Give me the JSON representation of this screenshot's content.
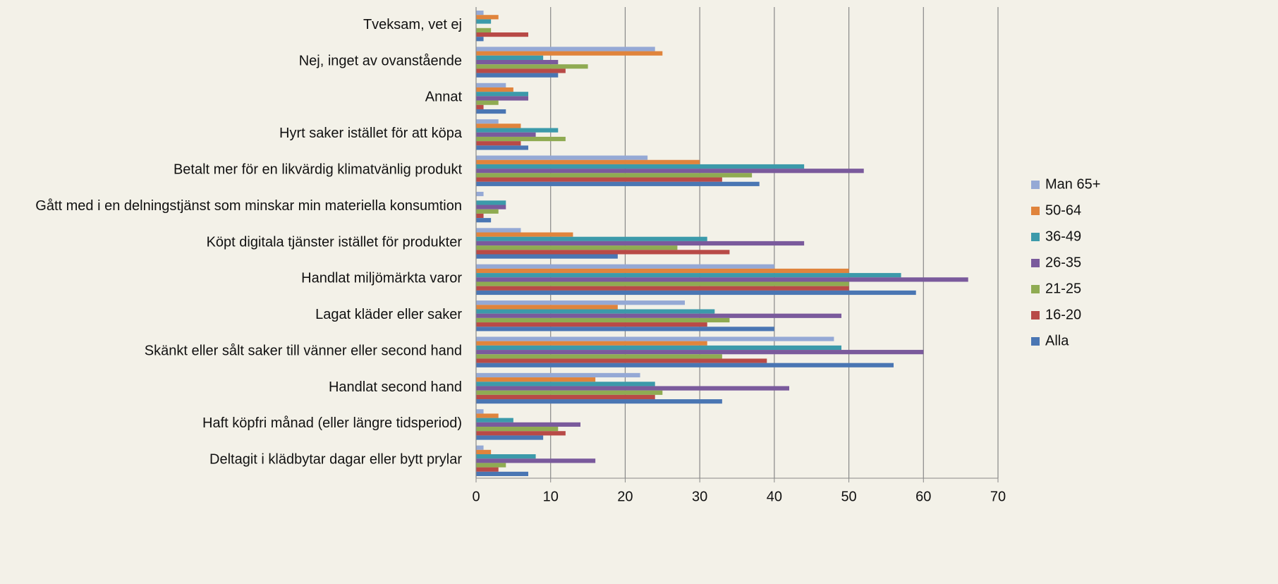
{
  "chart_data": {
    "type": "hbar",
    "categories": [
      "Tveksam, vet ej",
      "Nej, inget av ovanstående",
      "Annat",
      "Hyrt saker istället för att köpa",
      "Betalt mer för en likvärdig klimatvänlig produkt",
      "Gått med i en delningstjänst som minskar min materiella konsumtion",
      "Köpt digitala tjänster istället för produkter",
      "Handlat miljömärkta varor",
      "Lagat kläder eller saker",
      "Skänkt eller sålt saker till vänner eller second hand",
      "Handlat second hand",
      "Haft köpfri månad (eller längre tidsperiod)",
      "Deltagit i klädbytar dagar eller bytt prylar"
    ],
    "series": [
      {
        "name": "Man 65+",
        "color": "#95a9d5",
        "values": [
          1,
          24,
          4,
          3,
          23,
          1,
          6,
          40,
          28,
          48,
          22,
          1,
          1
        ]
      },
      {
        "name": "50-64",
        "color": "#e0843c",
        "values": [
          3,
          25,
          5,
          6,
          30,
          0,
          13,
          50,
          19,
          31,
          16,
          3,
          2
        ]
      },
      {
        "name": "36-49",
        "color": "#3c9aaa",
        "values": [
          2,
          9,
          7,
          11,
          44,
          4,
          31,
          57,
          32,
          49,
          24,
          5,
          8
        ]
      },
      {
        "name": "26-35",
        "color": "#7a5a9c",
        "values": [
          0,
          11,
          7,
          8,
          52,
          4,
          44,
          66,
          49,
          60,
          42,
          14,
          16
        ]
      },
      {
        "name": "21-25",
        "color": "#8fab52",
        "values": [
          2,
          15,
          3,
          12,
          37,
          3,
          27,
          50,
          34,
          33,
          25,
          11,
          4
        ]
      },
      {
        "name": "16-20",
        "color": "#b84a47",
        "values": [
          7,
          12,
          1,
          6,
          33,
          1,
          34,
          50,
          31,
          39,
          24,
          12,
          3
        ]
      },
      {
        "name": "Alla",
        "color": "#4a76b3",
        "values": [
          1,
          11,
          4,
          7,
          38,
          2,
          19,
          59,
          40,
          56,
          33,
          9,
          7
        ]
      }
    ],
    "xlim": [
      0,
      70
    ],
    "xticks": [
      0,
      10,
      20,
      30,
      40,
      50,
      60,
      70
    ],
    "grid": true,
    "legend": "right"
  }
}
